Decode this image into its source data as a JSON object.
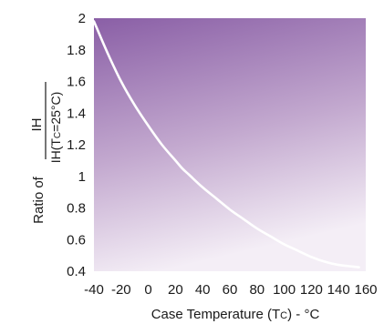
{
  "chart_data": {
    "type": "line",
    "xlabel_main": "Case Temperature (T",
    "xlabel_sub": "C",
    "xlabel_tail": ") - °C",
    "ylabel_prefix": "Ratio of",
    "ylabel_numerator": "IH",
    "ylabel_denominator_main": "IH(T",
    "ylabel_denominator_sub": "C",
    "ylabel_denominator_tail": "=25°C)",
    "xlim": [
      -40,
      160
    ],
    "ylim": [
      0.4,
      2
    ],
    "x_ticks": [
      -40,
      -20,
      0,
      20,
      40,
      60,
      80,
      100,
      120,
      140,
      160
    ],
    "y_ticks": [
      {
        "value": 0.4,
        "label": "0.4"
      },
      {
        "value": 0.6,
        "label": "0.6"
      },
      {
        "value": 0.8,
        "label": "0.8"
      },
      {
        "value": 1.0,
        "label": "1"
      },
      {
        "value": 1.2,
        "label": "1.2"
      },
      {
        "value": 1.4,
        "label": "1.4"
      },
      {
        "value": 1.6,
        "label": "1.6"
      },
      {
        "value": 1.8,
        "label": "1.8"
      },
      {
        "value": 2.0,
        "label": "2"
      }
    ],
    "series": [
      {
        "x": [
          -40,
          -30,
          -20,
          -10,
          0,
          10,
          20,
          25,
          30,
          40,
          50,
          60,
          70,
          80,
          90,
          100,
          110,
          120,
          130,
          140,
          150,
          155
        ],
        "y": [
          1.98,
          1.78,
          1.6,
          1.45,
          1.32,
          1.2,
          1.1,
          1.05,
          1.01,
          0.93,
          0.86,
          0.79,
          0.73,
          0.67,
          0.62,
          0.57,
          0.53,
          0.49,
          0.46,
          0.44,
          0.43,
          0.425
        ],
        "color": "#ffffff"
      }
    ],
    "background_gradient": {
      "top": "#8a5fa6",
      "bottom": "#f4eef6"
    },
    "grid": false
  }
}
